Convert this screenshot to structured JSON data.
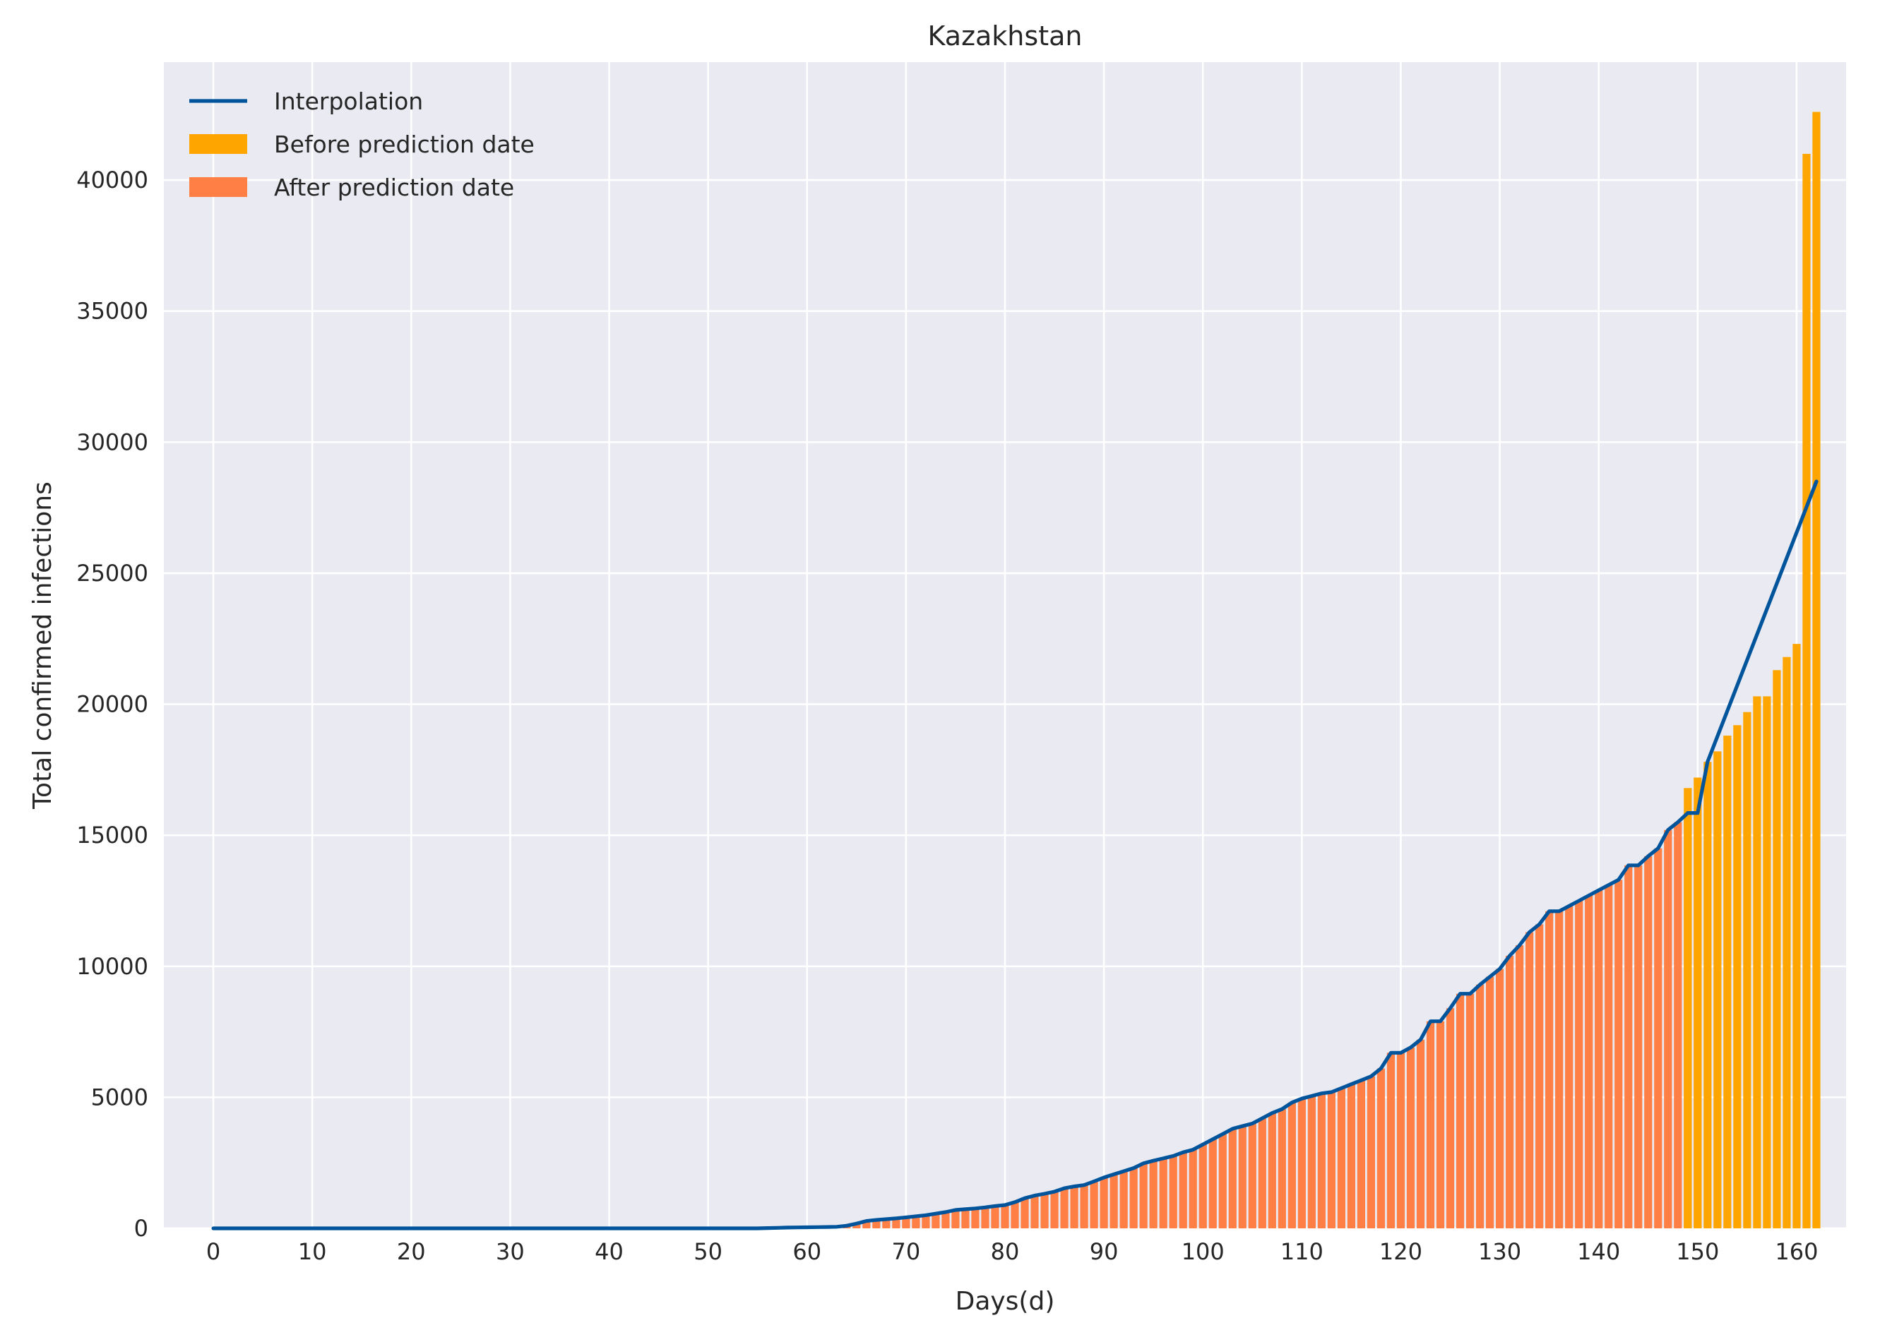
{
  "chart_data": {
    "type": "bar",
    "title": "Kazakhstan",
    "xlabel": "Days(d)",
    "ylabel": "Total confirmed infections",
    "xlim": [
      -5,
      165
    ],
    "ylim": [
      0,
      44500
    ],
    "xticks": [
      0,
      10,
      20,
      30,
      40,
      50,
      60,
      70,
      80,
      90,
      100,
      110,
      120,
      130,
      140,
      150,
      160
    ],
    "yticks": [
      0,
      5000,
      10000,
      15000,
      20000,
      25000,
      30000,
      35000,
      40000
    ],
    "grid": true,
    "legend_position": "top-left",
    "legend": [
      {
        "label": "Interpolation",
        "kind": "line",
        "color": "#00549b"
      },
      {
        "label": "Before prediction date",
        "kind": "patch",
        "color": "#ffa500"
      },
      {
        "label": "After prediction date",
        "kind": "patch",
        "color": "#ff7f45"
      }
    ],
    "colors": {
      "background": "#eaeaf2",
      "grid": "#ffffff",
      "after": "#ff7f45",
      "before": "#ffa500",
      "line": "#00549b"
    },
    "series": [
      {
        "name": "After prediction date",
        "x_start": 0,
        "values": [
          0,
          0,
          0,
          0,
          0,
          0,
          0,
          0,
          0,
          0,
          0,
          0,
          0,
          0,
          0,
          0,
          0,
          0,
          0,
          0,
          0,
          0,
          0,
          0,
          0,
          0,
          0,
          0,
          0,
          0,
          0,
          0,
          0,
          0,
          0,
          0,
          0,
          0,
          0,
          0,
          0,
          0,
          0,
          0,
          0,
          0,
          0,
          0,
          0,
          0,
          0,
          0,
          0,
          0,
          0,
          0,
          10,
          20,
          30,
          35,
          40,
          45,
          50,
          60,
          100,
          180,
          280,
          320,
          350,
          380,
          420,
          460,
          500,
          560,
          620,
          700,
          730,
          760,
          800,
          850,
          890,
          1000,
          1150,
          1250,
          1320,
          1400,
          1530,
          1600,
          1650,
          1790,
          1940,
          2060,
          2180,
          2300,
          2480,
          2580,
          2670,
          2760,
          2900,
          3000,
          3200,
          3400,
          3600,
          3800,
          3900,
          4000,
          4200,
          4400,
          4550,
          4800,
          4950,
          5050,
          5150,
          5200,
          5350,
          5500,
          5650,
          5800,
          6100,
          6700,
          6700,
          6900,
          7200,
          7900,
          7900,
          8400,
          8950,
          8950,
          9300,
          9600,
          9900,
          10400,
          10800,
          11300,
          11600,
          12100,
          12100,
          12300,
          12500,
          12700,
          12900,
          13100,
          13300,
          13850,
          13850,
          14200,
          14500,
          15200,
          15500,
          15850,
          15850
        ]
      },
      {
        "name": "Before prediction date",
        "x_start": 149,
        "values": [
          16800,
          17200,
          17800,
          18200,
          18800,
          19200,
          19700,
          20300,
          20300,
          21300,
          21800,
          22300,
          41000,
          42600
        ]
      },
      {
        "name": "Interpolation",
        "points": [
          [
            0,
            0
          ],
          [
            55,
            0
          ],
          [
            56,
            10
          ],
          [
            57,
            20
          ],
          [
            58,
            30
          ],
          [
            59,
            35
          ],
          [
            60,
            40
          ],
          [
            61,
            45
          ],
          [
            62,
            50
          ],
          [
            63,
            60
          ],
          [
            64,
            100
          ],
          [
            65,
            180
          ],
          [
            66,
            280
          ],
          [
            67,
            320
          ],
          [
            68,
            350
          ],
          [
            69,
            380
          ],
          [
            70,
            420
          ],
          [
            71,
            460
          ],
          [
            72,
            500
          ],
          [
            73,
            560
          ],
          [
            74,
            620
          ],
          [
            75,
            700
          ],
          [
            76,
            730
          ],
          [
            77,
            760
          ],
          [
            78,
            800
          ],
          [
            79,
            850
          ],
          [
            80,
            890
          ],
          [
            81,
            1000
          ],
          [
            82,
            1150
          ],
          [
            83,
            1250
          ],
          [
            84,
            1320
          ],
          [
            85,
            1400
          ],
          [
            86,
            1530
          ],
          [
            87,
            1600
          ],
          [
            88,
            1650
          ],
          [
            89,
            1790
          ],
          [
            90,
            1940
          ],
          [
            91,
            2060
          ],
          [
            92,
            2180
          ],
          [
            93,
            2300
          ],
          [
            94,
            2480
          ],
          [
            95,
            2580
          ],
          [
            96,
            2670
          ],
          [
            97,
            2760
          ],
          [
            98,
            2900
          ],
          [
            99,
            3000
          ],
          [
            100,
            3200
          ],
          [
            101,
            3400
          ],
          [
            102,
            3600
          ],
          [
            103,
            3800
          ],
          [
            104,
            3900
          ],
          [
            105,
            4000
          ],
          [
            106,
            4200
          ],
          [
            107,
            4400
          ],
          [
            108,
            4550
          ],
          [
            109,
            4800
          ],
          [
            110,
            4950
          ],
          [
            111,
            5050
          ],
          [
            112,
            5150
          ],
          [
            113,
            5200
          ],
          [
            114,
            5350
          ],
          [
            115,
            5500
          ],
          [
            116,
            5650
          ],
          [
            117,
            5800
          ],
          [
            118,
            6100
          ],
          [
            119,
            6700
          ],
          [
            120,
            6700
          ],
          [
            121,
            6900
          ],
          [
            122,
            7200
          ],
          [
            123,
            7900
          ],
          [
            124,
            7900
          ],
          [
            125,
            8400
          ],
          [
            126,
            8950
          ],
          [
            127,
            8950
          ],
          [
            128,
            9300
          ],
          [
            129,
            9600
          ],
          [
            130,
            9900
          ],
          [
            131,
            10400
          ],
          [
            132,
            10800
          ],
          [
            133,
            11300
          ],
          [
            134,
            11600
          ],
          [
            135,
            12100
          ],
          [
            136,
            12100
          ],
          [
            137,
            12300
          ],
          [
            138,
            12500
          ],
          [
            139,
            12700
          ],
          [
            140,
            12900
          ],
          [
            141,
            13100
          ],
          [
            142,
            13300
          ],
          [
            143,
            13850
          ],
          [
            144,
            13850
          ],
          [
            145,
            14200
          ],
          [
            146,
            14500
          ],
          [
            147,
            15200
          ],
          [
            148,
            15500
          ],
          [
            149,
            15850
          ],
          [
            150,
            15850
          ],
          [
            151,
            17800
          ],
          [
            162,
            28500
          ]
        ]
      }
    ]
  }
}
